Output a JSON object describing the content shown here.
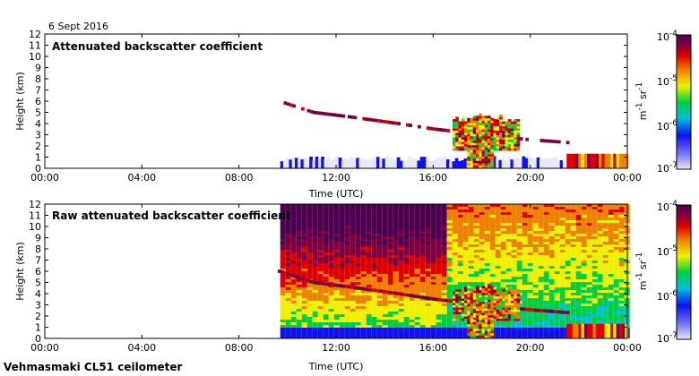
{
  "date_label": "6 Sept 2016",
  "footer_label": "Vehmasmaki CL51 ceilometer",
  "colorbar": {
    "ticks": [
      "10",
      "10",
      "10",
      "10"
    ],
    "exponents": [
      "-4",
      "-5",
      "-6",
      "-7"
    ],
    "unit_m": "m",
    "unit_m_exp": "-1",
    "unit_sr": "sr",
    "unit_sr_exp": "-1",
    "colors": [
      "#e8e8f6",
      "#1010f0",
      "#00c0e0",
      "#00d040",
      "#f0f000",
      "#f08000",
      "#e00000",
      "#800040",
      "#500050"
    ]
  },
  "chart_data": [
    {
      "type": "heatmap",
      "title": "Attenuated backscatter coefficient",
      "xlabel": "Time (UTC)",
      "ylabel": "Height (km)",
      "xticks": [
        "00:00",
        "04:00",
        "08:00",
        "12:00",
        "16:00",
        "20:00",
        "00:00"
      ],
      "yticks": [
        "0",
        "1",
        "2",
        "3",
        "4",
        "5",
        "6",
        "7",
        "8",
        "9",
        "10",
        "11",
        "12"
      ],
      "xlim_hours": [
        0,
        24
      ],
      "ylim_km": [
        0,
        12
      ],
      "colorscale_range": [
        1e-07,
        0.0001
      ],
      "features": [
        {
          "name": "boundary-layer-aerosol",
          "t_start": 9.7,
          "t_end": 24,
          "h_top": 0.9
        },
        {
          "name": "cloud-layer",
          "points_hours_km": [
            [
              9.6,
              6.0
            ],
            [
              11.0,
              5.0
            ],
            [
              12.5,
              4.6
            ],
            [
              14.5,
              4.0
            ],
            [
              16.0,
              3.5
            ],
            [
              19.7,
              2.6
            ],
            [
              21.5,
              2.3
            ]
          ]
        },
        {
          "name": "deep-cloud",
          "t_start": 16.8,
          "t_end": 19.5
        }
      ]
    },
    {
      "type": "heatmap",
      "title": "Raw attenuated backscatter coefficient",
      "xlabel": "Time (UTC)",
      "ylabel": "Height (km)",
      "xticks": [
        "00:00",
        "04:00",
        "08:00",
        "12:00",
        "16:00",
        "20:00",
        "00:00"
      ],
      "yticks": [
        "0",
        "1",
        "2",
        "3",
        "4",
        "5",
        "6",
        "7",
        "8",
        "9",
        "10",
        "11",
        "12"
      ],
      "xlim_hours": [
        0,
        24
      ],
      "ylim_km": [
        0,
        12
      ],
      "colorscale_range": [
        1e-07,
        0.0001
      ],
      "features": [
        {
          "name": "noise-field",
          "t_start": 9.7,
          "t_end": 24
        },
        {
          "name": "cloud-layer",
          "points_hours_km": [
            [
              9.6,
              6.0
            ],
            [
              11.0,
              5.0
            ],
            [
              12.5,
              4.6
            ],
            [
              14.5,
              4.0
            ],
            [
              16.0,
              3.5
            ],
            [
              19.7,
              2.6
            ],
            [
              21.5,
              2.3
            ]
          ]
        }
      ]
    }
  ]
}
